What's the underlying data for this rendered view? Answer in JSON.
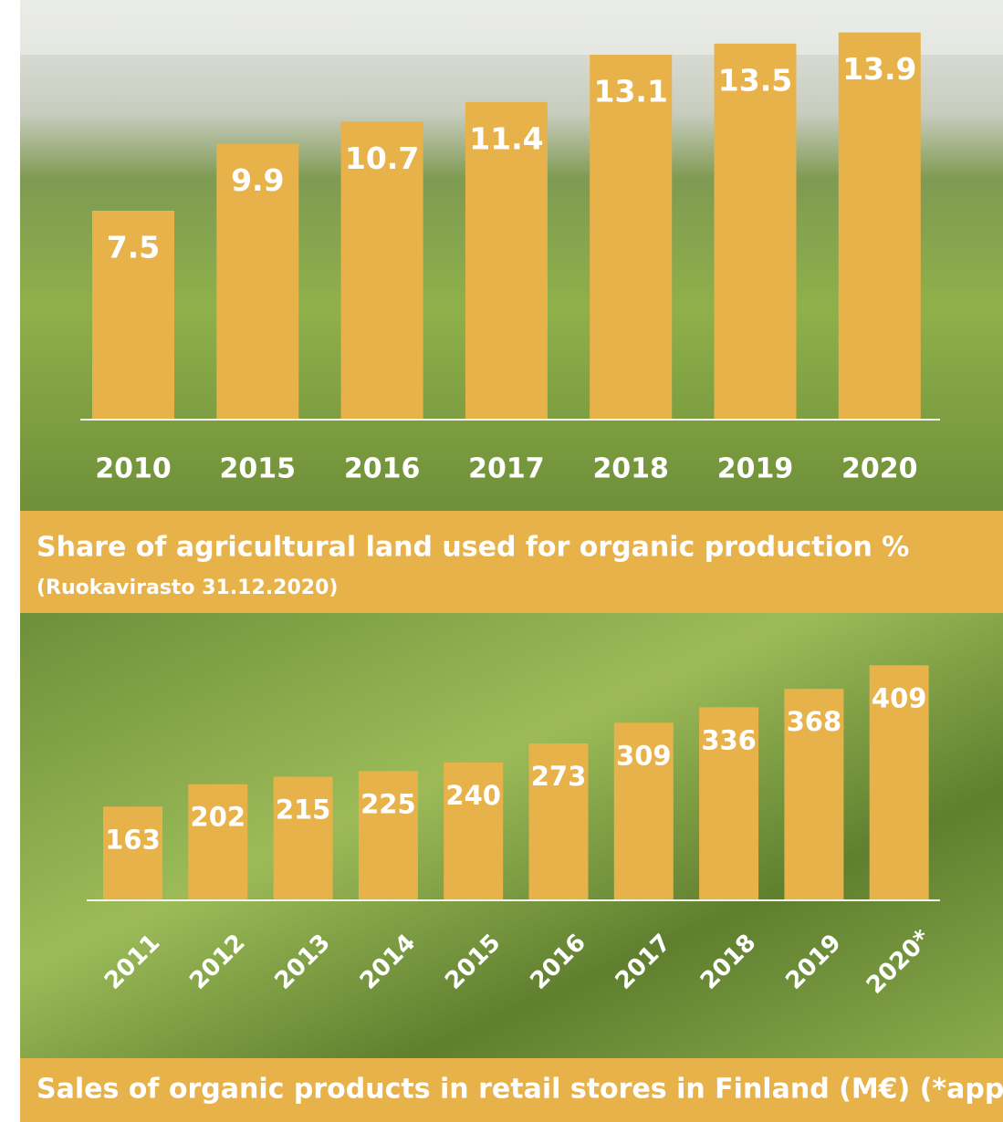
{
  "chart_data": [
    {
      "type": "bar",
      "title": "Share of agricultural land used for organic production %",
      "subtitle": "(Ruokavirasto 31.12.2020)",
      "categories": [
        "2010",
        "2015",
        "2016",
        "2017",
        "2018",
        "2019",
        "2020"
      ],
      "values": [
        7.5,
        9.9,
        10.7,
        11.4,
        13.1,
        13.5,
        13.9
      ],
      "color": "#e8b24b",
      "ylim": [
        0,
        15
      ]
    },
    {
      "type": "bar",
      "title": "Sales of organic products in retail stores in Finland (M€) (*appr.)",
      "categories": [
        "2011",
        "2012",
        "2013",
        "2014",
        "2015",
        "2016",
        "2017",
        "2018",
        "2019",
        "2020*"
      ],
      "values": [
        163,
        202,
        215,
        225,
        240,
        273,
        309,
        336,
        368,
        409
      ],
      "color": "#e8b24b",
      "ylim": [
        0,
        500
      ]
    }
  ]
}
